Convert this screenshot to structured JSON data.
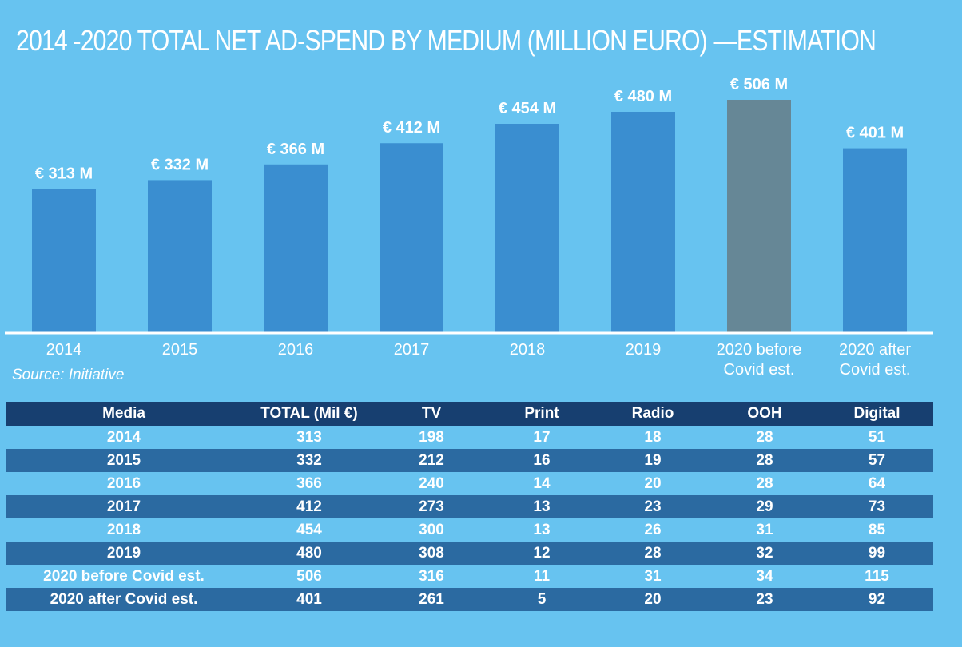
{
  "chart_data": {
    "type": "bar",
    "title": "2014 -2020 Total net ad-spend by medium (million Euro) —estimation",
    "categories": [
      "2014",
      "2015",
      "2016",
      "2017",
      "2018",
      "2019",
      "2020 before Covid est.",
      "2020 after Covid est."
    ],
    "category_lines": [
      [
        "2014"
      ],
      [
        "2015"
      ],
      [
        "2016"
      ],
      [
        "2017"
      ],
      [
        "2018"
      ],
      [
        "2019"
      ],
      [
        "2020 before",
        "Covid est."
      ],
      [
        "2020 after",
        "Covid est."
      ]
    ],
    "values": [
      313,
      332,
      366,
      412,
      454,
      480,
      506,
      401
    ],
    "data_labels": [
      "€ 313 M",
      "€ 332 M",
      "€ 366 M",
      "€ 412 M",
      "€ 454 M",
      "€ 480 M",
      "€ 506 M",
      "€ 401 M"
    ],
    "bar_colors": [
      "#3a8ed0",
      "#3a8ed0",
      "#3a8ed0",
      "#3a8ed0",
      "#3a8ed0",
      "#3a8ed0",
      "#668796",
      "#3a8ed0"
    ],
    "xlabel": "",
    "ylabel": "",
    "ylim": [
      0,
      540
    ],
    "grid": false,
    "legend": false
  },
  "source": "Source: Initiative",
  "table": {
    "headers": [
      "Media",
      "TOTAL (Mil €)",
      "TV",
      "Print",
      "Radio",
      "OOH",
      "Digital"
    ],
    "rows": [
      [
        "2014",
        "313",
        "198",
        "17",
        "18",
        "28",
        "51"
      ],
      [
        "2015",
        "332",
        "212",
        "16",
        "19",
        "28",
        "57"
      ],
      [
        "2016",
        "366",
        "240",
        "14",
        "20",
        "28",
        "64"
      ],
      [
        "2017",
        "412",
        "273",
        "13",
        "23",
        "29",
        "73"
      ],
      [
        "2018",
        "454",
        "300",
        "13",
        "26",
        "31",
        "85"
      ],
      [
        "2019",
        "480",
        "308",
        "12",
        "28",
        "32",
        "99"
      ],
      [
        "2020 before Covid est.",
        "506",
        "316",
        "11",
        "31",
        "34",
        "115"
      ],
      [
        "2020 after Covid est.",
        "401",
        "261",
        "5",
        "20",
        "23",
        "92"
      ]
    ]
  },
  "colors": {
    "background": "#67c3f0",
    "bar": "#3a8ed0",
    "bar_highlight": "#668796",
    "table_header": "#173f70",
    "table_band": "#2b6aa1",
    "text": "#ffffff"
  }
}
